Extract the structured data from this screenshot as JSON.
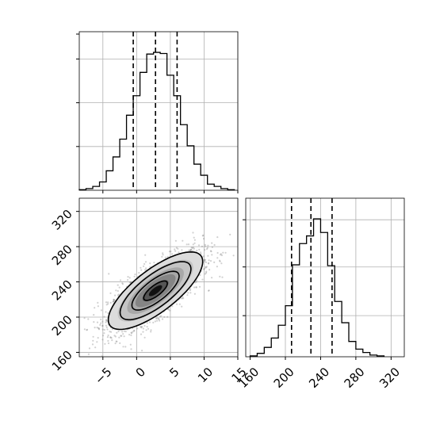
{
  "chart_data": {
    "type": "corner",
    "description_of_panels": [
      "hist_x",
      "scatter_xy",
      "hist_y"
    ],
    "hist_x": {
      "type": "histogram",
      "bins_edges": [
        -8.5,
        -7.5,
        -6.5,
        -5.5,
        -4.5,
        -3.5,
        -2.5,
        -1.5,
        -0.5,
        0.5,
        1.5,
        2.5,
        3.5,
        4.5,
        5.5,
        6.5,
        7.5,
        8.5,
        9.5,
        10.5,
        11.5,
        12.5,
        13.5,
        14.5
      ],
      "counts": [
        1,
        3,
        7,
        15,
        35,
        60,
        92,
        135,
        170,
        212,
        245,
        248,
        246,
        207,
        170,
        118,
        80,
        47,
        27,
        11,
        7,
        3,
        1
      ],
      "quantile_lines": [
        -0.5,
        2.8,
        6.0
      ],
      "xlim": [
        -8.5,
        15
      ],
      "xticks": [
        -5,
        0,
        5,
        10,
        15
      ]
    },
    "hist_y": {
      "type": "histogram",
      "bins_edges": [
        160,
        168,
        176,
        184,
        192,
        200,
        208,
        216,
        224,
        232,
        240,
        248,
        256,
        264,
        272,
        280,
        288,
        296,
        304,
        312
      ],
      "counts": [
        1,
        4,
        11,
        22,
        37,
        60,
        108,
        133,
        142,
        162,
        146,
        107,
        65,
        40,
        18,
        9,
        5,
        2,
        1
      ],
      "quantile_lines": [
        207,
        229,
        253
      ],
      "xlim": [
        155,
        335
      ],
      "xticks": [
        160,
        200,
        240,
        280,
        320
      ],
      "xtick_labels": [
        "160",
        "200",
        "240",
        "280",
        "320"
      ]
    },
    "scatter_xy": {
      "type": "scatter_density",
      "mean": [
        2.8,
        230
      ],
      "std": [
        3.5,
        22
      ],
      "correlation": 0.75,
      "xlim": [
        -8.5,
        15
      ],
      "ylim": [
        155,
        335
      ],
      "xticks": [
        -5,
        0,
        5,
        10,
        15
      ],
      "xtick_labels": [
        "−5",
        "0",
        "5",
        "10",
        "15"
      ],
      "yticks": [
        160,
        200,
        240,
        280,
        320
      ],
      "ytick_labels": [
        "160",
        "200",
        "240",
        "280",
        "320"
      ],
      "contour_levels_sigma": [
        0.5,
        1.0,
        1.5,
        2.0
      ]
    }
  }
}
